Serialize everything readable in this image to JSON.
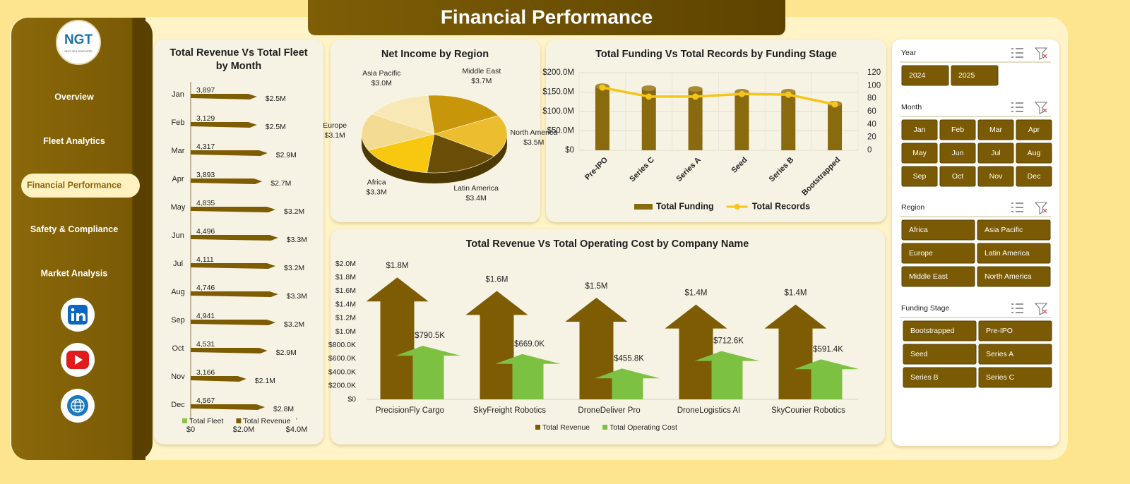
{
  "header": {
    "title": "Financial Performance"
  },
  "logo": {
    "text": "NGT",
    "subtitle": "NEXT GEN TEMPLATES"
  },
  "nav": {
    "items": [
      {
        "label": "Overview"
      },
      {
        "label": "Fleet Analytics"
      },
      {
        "label": "Financial Performance",
        "active": true
      },
      {
        "label": "Safety & Compliance"
      },
      {
        "label": "Market Analysis"
      }
    ]
  },
  "slicers": [
    {
      "title": "Year",
      "items": [
        "2024",
        "2025"
      ]
    },
    {
      "title": "Month",
      "items": [
        "Jan",
        "Feb",
        "Mar",
        "Apr",
        "May",
        "Jun",
        "Jul",
        "Aug",
        "Sep",
        "Oct",
        "Nov",
        "Dec"
      ]
    },
    {
      "title": "Region",
      "items": [
        "Africa",
        "Asia Pacific",
        "Europe",
        "Latin America",
        "Middle East",
        "North America"
      ]
    },
    {
      "title": "Funding Stage",
      "items": [
        "Bootstrapped",
        "Pre-IPO",
        "Seed",
        "Series A",
        "Series B",
        "Series C"
      ]
    }
  ],
  "chart_data": [
    {
      "type": "bar",
      "orientation": "horizontal",
      "title": "Total Revenue Vs Total Fleet by Month",
      "categories": [
        "Jan",
        "Feb",
        "Mar",
        "Apr",
        "May",
        "Jun",
        "Jul",
        "Aug",
        "Sep",
        "Oct",
        "Nov",
        "Dec"
      ],
      "series": [
        {
          "name": "Total Fleet",
          "color": "#8cc63e",
          "values": [
            3897,
            3129,
            4317,
            3893,
            4835,
            4496,
            4111,
            4746,
            4941,
            4531,
            3166,
            4567
          ],
          "value_labels": [
            "3,897",
            "3,129",
            "4,317",
            "3,893",
            "4,835",
            "4,496",
            "4,111",
            "4,746",
            "4,941",
            "4,531",
            "3,166",
            "4,567"
          ]
        },
        {
          "name": "Total Revenue",
          "color": "#7d5c04",
          "values": [
            2500000,
            2500000,
            2900000,
            2700000,
            3200000,
            3300000,
            3200000,
            3300000,
            3200000,
            2900000,
            2100000,
            2800000
          ],
          "value_labels": [
            "$2.5M",
            "$2.5M",
            "$2.9M",
            "$2.7M",
            "$3.2M",
            "$3.3M",
            "$3.2M",
            "$3.3M",
            "$3.2M",
            "$2.9M",
            "$2.1M",
            "$2.8M"
          ]
        }
      ],
      "xlim": [
        0,
        4000000
      ],
      "xticks": [
        {
          "value": 0,
          "label": "$0"
        },
        {
          "value": 2000000,
          "label": "$2.0M"
        },
        {
          "value": 4000000,
          "label": "$4.0M"
        }
      ],
      "legend": "bottom"
    },
    {
      "type": "pie",
      "title": "Net Income by Region",
      "categories": [
        "Middle East",
        "North America",
        "Latin America",
        "Africa",
        "Europe",
        "Asia Pacific"
      ],
      "values": [
        3700000,
        3500000,
        3400000,
        3300000,
        3100000,
        3000000
      ],
      "value_labels": [
        "$3.7M",
        "$3.5M",
        "$3.4M",
        "$3.3M",
        "$3.1M",
        "$3.0M"
      ],
      "colors": [
        "#c8960a",
        "#ecbd2e",
        "#6a4e08",
        "#f8c70f",
        "#f3dc92",
        "#f8e8b6"
      ]
    },
    {
      "type": "combo",
      "title": "Total Funding Vs Total Records by Funding Stage",
      "categories": [
        "Pre-IPO",
        "Series C",
        "Series A",
        "Seed",
        "Series B",
        "Bootstrapped"
      ],
      "series": [
        {
          "name": "Total Funding",
          "type": "bar",
          "color": "#8a6a0e",
          "values": [
            165000000,
            160000000,
            158000000,
            151000000,
            151000000,
            120000000
          ]
        },
        {
          "name": "Total Records",
          "type": "line",
          "axis": "y2",
          "color": "#f5c518",
          "values": [
            97,
            83,
            83,
            87,
            86,
            71
          ]
        }
      ],
      "ylim": [
        0,
        200000000
      ],
      "yticks": [
        {
          "value": 0,
          "label": "$0"
        },
        {
          "value": 50000000,
          "label": "$50.0M"
        },
        {
          "value": 100000000,
          "label": "$100.0M"
        },
        {
          "value": 150000000,
          "label": "$150.0M"
        },
        {
          "value": 200000000,
          "label": "$200.0M"
        }
      ],
      "y2lim": [
        0,
        120
      ],
      "y2ticks": [
        0,
        20,
        40,
        60,
        80,
        100,
        120
      ],
      "grid": true,
      "legend": "bottom"
    },
    {
      "type": "bar",
      "orientation": "vertical",
      "shape": "arrow",
      "title": "Total Revenue Vs Total Operating Cost by Company Name",
      "categories": [
        "PrecisionFly Cargo",
        "SkyFreight Robotics",
        "DroneDeliver Pro",
        "DroneLogistics AI",
        "SkyCourier Robotics"
      ],
      "series": [
        {
          "name": "Total Revenue",
          "color": "#7d5c04",
          "values": [
            1800000,
            1600000,
            1500000,
            1400000,
            1400000
          ],
          "value_labels": [
            "$1.8M",
            "$1.6M",
            "$1.5M",
            "$1.4M",
            "$1.4M"
          ]
        },
        {
          "name": "Total Operating Cost",
          "color": "#7dc142",
          "values": [
            790500,
            669000,
            455800,
            712600,
            591400
          ],
          "value_labels": [
            "$790.5K",
            "$669.0K",
            "$455.8K",
            "$712.6K",
            "$591.4K"
          ]
        }
      ],
      "ylim": [
        0,
        2000000
      ],
      "yticks": [
        {
          "value": 0,
          "label": "$0"
        },
        {
          "value": 200000,
          "label": "$200.0K"
        },
        {
          "value": 400000,
          "label": "$400.0K"
        },
        {
          "value": 600000,
          "label": "$600.0K"
        },
        {
          "value": 800000,
          "label": "$800.0K"
        },
        {
          "value": 1000000,
          "label": "$1.0M"
        },
        {
          "value": 1200000,
          "label": "$1.2M"
        },
        {
          "value": 1400000,
          "label": "$1.4M"
        },
        {
          "value": 1600000,
          "label": "$1.6M"
        },
        {
          "value": 1800000,
          "label": "$1.8M"
        },
        {
          "value": 2000000,
          "label": "$2.0M"
        }
      ],
      "legend": "bottom"
    }
  ]
}
